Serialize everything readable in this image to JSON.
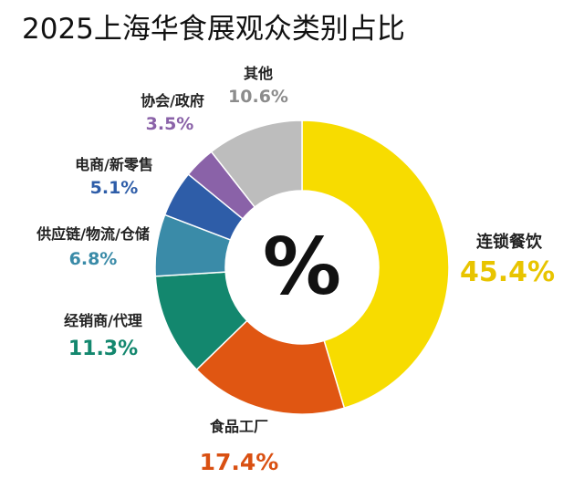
{
  "title": "2025上海华食展观众类别占比",
  "chart_data": {
    "type": "pie",
    "title": "2025上海华食展观众类别占比",
    "center_label": "%",
    "series": [
      {
        "label": "连锁餐饮",
        "value_text": "45.4%",
        "value": 45.4,
        "color": "#F7DC00"
      },
      {
        "label": "食品工厂",
        "value_text": "17.4%",
        "value": 17.4,
        "color": "#E05612"
      },
      {
        "label": "经销商/代理",
        "value_text": "11.3%",
        "value": 11.3,
        "color": "#13876E"
      },
      {
        "label": "供应链/物流/仓储",
        "value_text": "6.8%",
        "value": 6.8,
        "color": "#3A8BA8"
      },
      {
        "label": "电商/新零售",
        "value_text": "5.1%",
        "value": 5.1,
        "color": "#2E5DA8"
      },
      {
        "label": "协会/政府",
        "value_text": "3.5%",
        "value": 3.5,
        "color": "#8A62A8"
      },
      {
        "label": "其他",
        "value_text": "10.6%",
        "value": 10.6,
        "color": "#BDBDBD"
      }
    ]
  }
}
